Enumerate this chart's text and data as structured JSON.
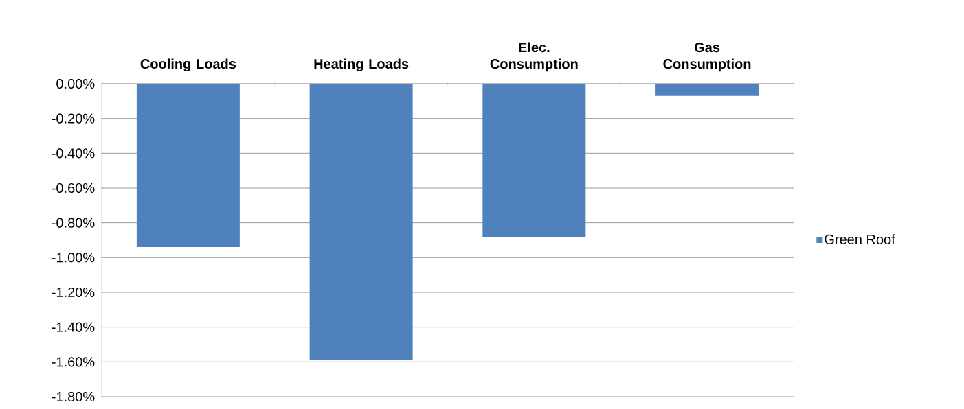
{
  "chart_data": {
    "type": "bar",
    "categories": [
      "Cooling Loads",
      "Heating Loads",
      "Elec. Consumption",
      "Gas Consumption"
    ],
    "series": [
      {
        "name": "Green Roof",
        "color": "#4f81bd",
        "values": [
          -0.94,
          -1.59,
          -0.88,
          -0.07
        ]
      }
    ],
    "ylim": [
      -1.8,
      0
    ],
    "yticks": [
      {
        "value": 0,
        "label": "0.00%"
      },
      {
        "value": -0.2,
        "label": "-0.20%"
      },
      {
        "value": -0.4,
        "label": "-0.40%"
      },
      {
        "value": -0.6,
        "label": "-0.60%"
      },
      {
        "value": -0.8,
        "label": "-0.80%"
      },
      {
        "value": -1.0,
        "label": "-1.00%"
      },
      {
        "value": -1.2,
        "label": "-1.20%"
      },
      {
        "value": -1.4,
        "label": "-1.40%"
      },
      {
        "value": -1.6,
        "label": "-1.60%"
      },
      {
        "value": -1.8,
        "label": "-1.80%"
      }
    ],
    "grid": "y",
    "legend": "right"
  }
}
